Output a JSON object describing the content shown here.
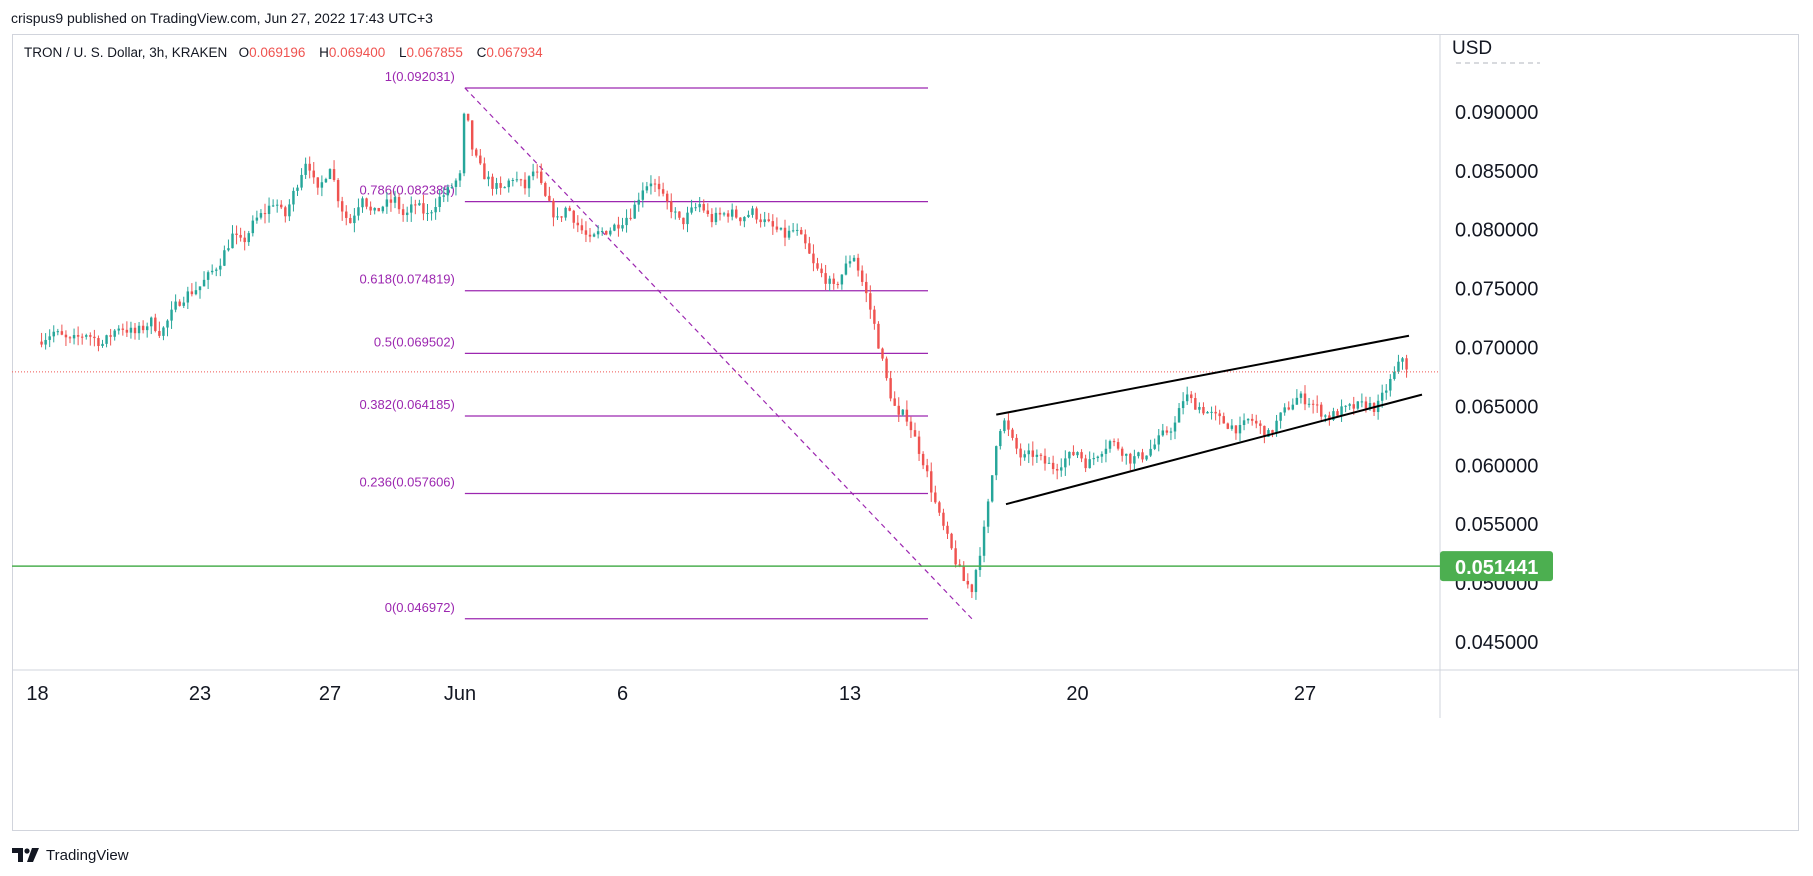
{
  "header": {
    "published_by": "crispus9 published on TradingView.com, Jun 27, 2022 17:43 UTC+3"
  },
  "legend": {
    "symbol": "TRON / U. S. Dollar, 3h, KRAKEN",
    "o_label": "O",
    "o_value": "0.069196",
    "h_label": "H",
    "h_value": "0.069400",
    "l_label": "L",
    "l_value": "0.067855",
    "c_label": "C",
    "c_value": "0.067934"
  },
  "footer": {
    "brand": "TradingView"
  },
  "colors": {
    "up": "#26a69a",
    "down": "#ef5350",
    "fib": "#9c27b0",
    "support": "#4caf50",
    "current_price_line": "#ef5350",
    "channel": "#000000"
  },
  "chart_data": {
    "type": "candlestick",
    "currency_label": "USD",
    "y_ticks": [
      "0.090000",
      "0.085000",
      "0.080000",
      "0.075000",
      "0.070000",
      "0.065000",
      "0.060000",
      "0.055000",
      "0.050000",
      "0.045000"
    ],
    "ylim": [
      0.0415,
      0.0965
    ],
    "x_ticks": [
      {
        "label": "18",
        "day": 0
      },
      {
        "label": "23",
        "day": 5
      },
      {
        "label": "27",
        "day": 9
      },
      {
        "label": "Jun",
        "day": 13
      },
      {
        "label": "6",
        "day": 18
      },
      {
        "label": "13",
        "day": 25
      },
      {
        "label": "20",
        "day": 32
      },
      {
        "label": "27",
        "day": 39
      }
    ],
    "xlim_days": [
      0,
      42.8
    ],
    "support_level": {
      "value": 0.051441,
      "label": "0.051441"
    },
    "last_price": 0.067934,
    "fibonacci": {
      "start": {
        "day": 13.15,
        "price": 0.092031
      },
      "end": {
        "day": 28.75,
        "price": 0.046972
      },
      "end_day_right": 27.4,
      "levels": [
        {
          "label": "1(0.092031)",
          "value": 0.092031
        },
        {
          "label": "0.786(0.082385)",
          "value": 0.082385
        },
        {
          "label": "0.618(0.074819)",
          "value": 0.074819
        },
        {
          "label": "0.5(0.069502)",
          "value": 0.069502
        },
        {
          "label": "0.382(0.064185)",
          "value": 0.064185
        },
        {
          "label": "0.236(0.057606)",
          "value": 0.057606
        },
        {
          "label": "0(0.046972)",
          "value": 0.046972
        }
      ]
    },
    "channel": {
      "upper": [
        {
          "day": 29.5,
          "price": 0.0643
        },
        {
          "day": 42.2,
          "price": 0.071
        }
      ],
      "lower": [
        {
          "day": 29.8,
          "price": 0.0567
        },
        {
          "day": 42.6,
          "price": 0.066
        }
      ]
    },
    "price_path": [
      [
        0,
        0.0705
      ],
      [
        0.5,
        0.0713
      ],
      [
        1.0,
        0.0705
      ],
      [
        1.5,
        0.0712
      ],
      [
        2.0,
        0.0703
      ],
      [
        2.5,
        0.0718
      ],
      [
        3.0,
        0.0712
      ],
      [
        3.5,
        0.0722
      ],
      [
        3.8,
        0.0712
      ],
      [
        4.0,
        0.0722
      ],
      [
        4.3,
        0.0738
      ],
      [
        4.6,
        0.0745
      ],
      [
        5.0,
        0.0752
      ],
      [
        5.3,
        0.0762
      ],
      [
        5.6,
        0.0772
      ],
      [
        6.0,
        0.0795
      ],
      [
        6.3,
        0.0788
      ],
      [
        6.7,
        0.0808
      ],
      [
        7.0,
        0.0815
      ],
      [
        7.3,
        0.0825
      ],
      [
        7.6,
        0.081
      ],
      [
        8.0,
        0.084
      ],
      [
        8.3,
        0.0862
      ],
      [
        8.6,
        0.083
      ],
      [
        9.0,
        0.0855
      ],
      [
        9.3,
        0.0822
      ],
      [
        9.6,
        0.0805
      ],
      [
        10.0,
        0.083
      ],
      [
        10.3,
        0.0812
      ],
      [
        10.6,
        0.082
      ],
      [
        11.0,
        0.0825
      ],
      [
        11.3,
        0.081
      ],
      [
        11.6,
        0.0822
      ],
      [
        12.0,
        0.0812
      ],
      [
        12.3,
        0.0825
      ],
      [
        12.6,
        0.0832
      ],
      [
        13.0,
        0.0845
      ],
      [
        13.15,
        0.0905
      ],
      [
        13.4,
        0.0865
      ],
      [
        13.7,
        0.0848
      ],
      [
        14.0,
        0.0838
      ],
      [
        14.3,
        0.0832
      ],
      [
        14.6,
        0.0845
      ],
      [
        15.0,
        0.0836
      ],
      [
        15.3,
        0.0852
      ],
      [
        15.6,
        0.0828
      ],
      [
        16.0,
        0.0808
      ],
      [
        16.3,
        0.082
      ],
      [
        16.6,
        0.0805
      ],
      [
        17.0,
        0.079
      ],
      [
        17.3,
        0.0798
      ],
      [
        17.6,
        0.08
      ],
      [
        18.0,
        0.0808
      ],
      [
        18.3,
        0.0815
      ],
      [
        18.6,
        0.0835
      ],
      [
        18.9,
        0.0842
      ],
      [
        19.2,
        0.0828
      ],
      [
        19.5,
        0.0818
      ],
      [
        19.8,
        0.0805
      ],
      [
        20.1,
        0.0815
      ],
      [
        20.4,
        0.0822
      ],
      [
        20.7,
        0.0808
      ],
      [
        21.0,
        0.0812
      ],
      [
        21.3,
        0.0815
      ],
      [
        21.6,
        0.081
      ],
      [
        22.0,
        0.0815
      ],
      [
        22.3,
        0.0808
      ],
      [
        22.6,
        0.0802
      ],
      [
        23.0,
        0.0795
      ],
      [
        23.3,
        0.08
      ],
      [
        23.6,
        0.0788
      ],
      [
        23.9,
        0.0768
      ],
      [
        24.2,
        0.076
      ],
      [
        24.5,
        0.075
      ],
      [
        24.8,
        0.0765
      ],
      [
        25.1,
        0.078
      ],
      [
        25.3,
        0.0762
      ],
      [
        25.5,
        0.0745
      ],
      [
        25.7,
        0.0725
      ],
      [
        25.9,
        0.07
      ],
      [
        26.1,
        0.0675
      ],
      [
        26.3,
        0.0655
      ],
      [
        26.5,
        0.064
      ],
      [
        26.7,
        0.0645
      ],
      [
        26.9,
        0.063
      ],
      [
        27.1,
        0.0615
      ],
      [
        27.3,
        0.06
      ],
      [
        27.5,
        0.058
      ],
      [
        27.7,
        0.056
      ],
      [
        27.9,
        0.0545
      ],
      [
        28.1,
        0.053
      ],
      [
        28.3,
        0.0515
      ],
      [
        28.5,
        0.0502
      ],
      [
        28.75,
        0.0495
      ],
      [
        28.9,
        0.0515
      ],
      [
        29.1,
        0.054
      ],
      [
        29.3,
        0.0575
      ],
      [
        29.5,
        0.062
      ],
      [
        29.7,
        0.064
      ],
      [
        30.0,
        0.062
      ],
      [
        30.3,
        0.0605
      ],
      [
        30.6,
        0.061
      ],
      [
        31.0,
        0.0602
      ],
      [
        31.3,
        0.0598
      ],
      [
        31.6,
        0.0605
      ],
      [
        32.0,
        0.0612
      ],
      [
        32.3,
        0.06
      ],
      [
        32.6,
        0.061
      ],
      [
        33.0,
        0.062
      ],
      [
        33.3,
        0.0615
      ],
      [
        33.6,
        0.0605
      ],
      [
        34.0,
        0.0608
      ],
      [
        34.3,
        0.0615
      ],
      [
        34.6,
        0.0625
      ],
      [
        35.0,
        0.0635
      ],
      [
        35.3,
        0.066
      ],
      [
        35.6,
        0.0652
      ],
      [
        36.0,
        0.0645
      ],
      [
        36.3,
        0.064
      ],
      [
        36.6,
        0.0635
      ],
      [
        37.0,
        0.063
      ],
      [
        37.3,
        0.064
      ],
      [
        37.6,
        0.0632
      ],
      [
        37.9,
        0.0625
      ],
      [
        38.2,
        0.064
      ],
      [
        38.5,
        0.065
      ],
      [
        38.8,
        0.0658
      ],
      [
        39.1,
        0.0655
      ],
      [
        39.4,
        0.0648
      ],
      [
        39.7,
        0.064
      ],
      [
        40.0,
        0.0645
      ],
      [
        40.3,
        0.0648
      ],
      [
        40.6,
        0.065
      ],
      [
        40.9,
        0.0652
      ],
      [
        41.2,
        0.0648
      ],
      [
        41.5,
        0.0665
      ],
      [
        41.8,
        0.068
      ],
      [
        42.0,
        0.0692
      ],
      [
        42.2,
        0.0679
      ]
    ]
  }
}
